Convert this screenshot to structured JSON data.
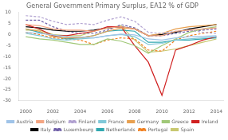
{
  "chart_data": {
    "type": "line",
    "title": "General Government Primary Surplus, EA12 % of GDP",
    "x": [
      2000,
      2001,
      2002,
      2003,
      2004,
      2005,
      2006,
      2007,
      2008,
      2009,
      2010,
      2011,
      2012,
      2013,
      2014
    ],
    "series": [
      {
        "name": "Austria",
        "color": "#a0c4e8",
        "line_style": "solid",
        "values": [
          1.0,
          0.5,
          -0.2,
          -1.0,
          -1.2,
          -1.5,
          -0.5,
          0.2,
          -0.2,
          -2.0,
          -2.5,
          -1.5,
          -1.0,
          -0.8,
          -0.5
        ]
      },
      {
        "name": "Belgium",
        "color": "#f4a582",
        "line_style": "solid",
        "values": [
          4.5,
          4.0,
          2.5,
          2.0,
          2.0,
          1.5,
          3.0,
          3.5,
          2.5,
          -0.5,
          -0.5,
          1.5,
          2.0,
          2.5,
          3.0
        ]
      },
      {
        "name": "Finland",
        "color": "#b0a0d0",
        "line_style": "dashed",
        "values": [
          8.5,
          8.0,
          6.0,
          4.5,
          5.0,
          4.5,
          6.5,
          8.0,
          6.0,
          1.0,
          0.5,
          1.5,
          2.0,
          1.0,
          0.5
        ]
      },
      {
        "name": "France",
        "color": "#80c8d8",
        "line_style": "solid",
        "values": [
          0.5,
          -0.5,
          -2.0,
          -2.5,
          -2.0,
          -1.5,
          -0.5,
          0.0,
          -1.0,
          -4.5,
          -4.0,
          -2.5,
          -2.0,
          -1.5,
          -1.0
        ]
      },
      {
        "name": "Germany",
        "color": "#e8a050",
        "line_style": "solid",
        "values": [
          2.5,
          1.5,
          -1.0,
          -1.5,
          -1.5,
          -0.5,
          1.5,
          3.0,
          2.5,
          -0.5,
          0.5,
          2.5,
          3.5,
          4.0,
          4.5
        ]
      },
      {
        "name": "Greece",
        "color": "#a0c878",
        "line_style": "solid",
        "values": [
          -1.0,
          -2.0,
          -2.5,
          -3.5,
          -4.5,
          -4.5,
          -2.0,
          -3.0,
          -5.0,
          -8.5,
          -5.0,
          -2.0,
          1.0,
          2.5,
          3.5
        ]
      },
      {
        "name": "Ireland",
        "color": "#d02020",
        "line_style": "solid",
        "values": [
          4.5,
          2.5,
          -0.5,
          -0.5,
          0.5,
          1.5,
          3.5,
          3.5,
          -5.0,
          -12.5,
          -27.5,
          -7.0,
          -5.0,
          -2.5,
          -1.0
        ]
      },
      {
        "name": "Italy",
        "color": "#000000",
        "line_style": "solid",
        "values": [
          3.5,
          3.0,
          2.0,
          1.5,
          1.5,
          2.0,
          3.0,
          3.5,
          2.5,
          -0.5,
          0.0,
          1.0,
          2.5,
          3.5,
          4.5
        ]
      },
      {
        "name": "Luxembourg",
        "color": "#7060a8",
        "line_style": "dashed",
        "values": [
          6.5,
          6.5,
          3.5,
          1.5,
          0.5,
          0.5,
          2.0,
          4.5,
          3.0,
          -0.5,
          -0.5,
          0.5,
          1.5,
          2.0,
          2.5
        ]
      },
      {
        "name": "Netherlands",
        "color": "#30a8b0",
        "line_style": "solid",
        "values": [
          2.5,
          1.0,
          -0.5,
          -2.0,
          -1.5,
          -0.5,
          1.5,
          2.0,
          1.5,
          -3.5,
          -3.5,
          -2.5,
          -2.5,
          -2.0,
          -1.5
        ]
      },
      {
        "name": "Portugal",
        "color": "#f08020",
        "line_style": "dashed",
        "values": [
          1.0,
          0.0,
          -1.5,
          -2.0,
          -2.5,
          -4.5,
          -2.5,
          -1.5,
          -2.0,
          -7.0,
          -7.5,
          -2.5,
          -0.5,
          0.5,
          1.5
        ]
      },
      {
        "name": "Spain",
        "color": "#c8c870",
        "line_style": "solid",
        "values": [
          2.0,
          2.0,
          0.0,
          -0.5,
          -0.5,
          1.5,
          3.0,
          4.0,
          -2.5,
          -8.0,
          -7.5,
          -6.5,
          -5.0,
          -3.5,
          -2.0
        ]
      }
    ],
    "xlim": [
      1999.5,
      2014.5
    ],
    "xticks": [
      2000,
      2002,
      2004,
      2006,
      2008,
      2010,
      2012,
      2014
    ],
    "ylim": [
      -30,
      10
    ],
    "yticks": [
      10,
      5,
      0,
      -5,
      -10,
      -15,
      -20,
      -25,
      -30
    ],
    "grid": false,
    "legend": "bottom"
  }
}
